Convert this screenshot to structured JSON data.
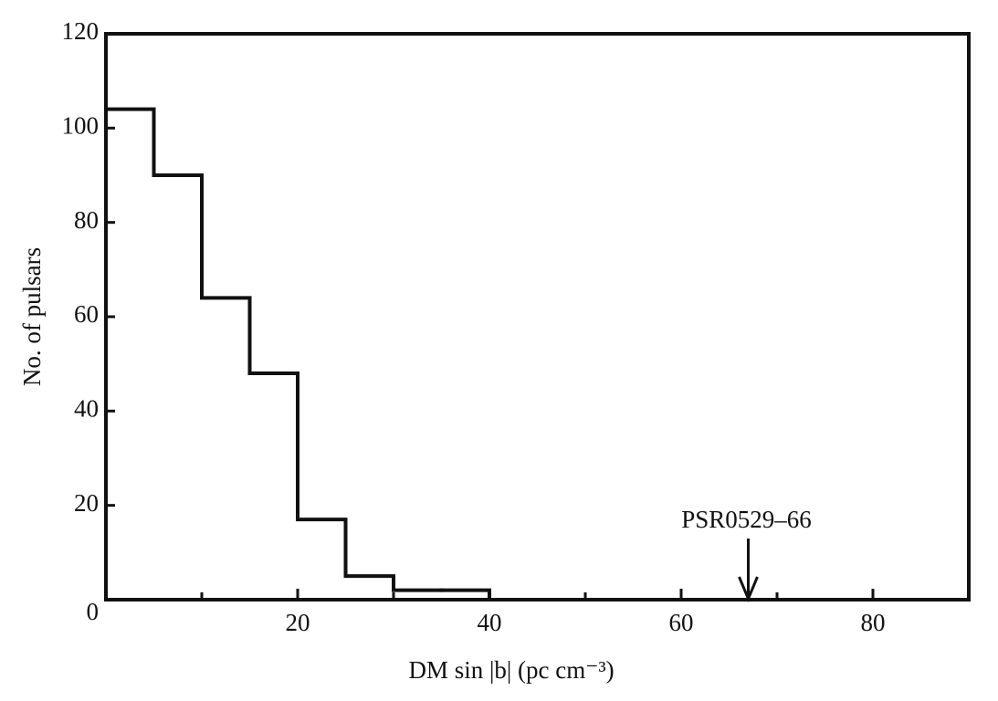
{
  "chart_data": {
    "type": "histogram",
    "xlabel": "DM sin |b| (pc cm⁻³)",
    "ylabel": "No. of pulsars",
    "bins": [
      0,
      5,
      10,
      15,
      20,
      25,
      30,
      35,
      40
    ],
    "values": [
      104,
      90,
      64,
      48,
      17,
      5,
      2,
      2
    ],
    "color": "#111111",
    "xlim": [
      0,
      90
    ],
    "ylim": [
      0,
      120
    ],
    "xticks": [
      20,
      40,
      60,
      80
    ],
    "xminor_ticks": [
      10,
      30,
      50,
      70
    ],
    "yticks": [
      0,
      20,
      40,
      60,
      80,
      100,
      120
    ],
    "grid": false,
    "annotations": [
      {
        "text": "PSR0529–66",
        "x": 67
      }
    ]
  }
}
